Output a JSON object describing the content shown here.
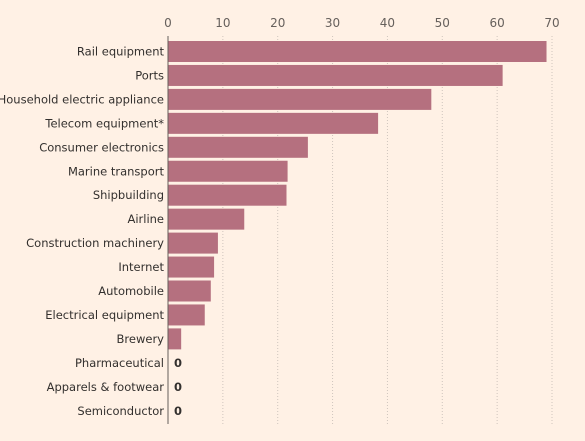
{
  "chart_data": {
    "type": "bar",
    "orientation": "horizontal",
    "categories": [
      "Rail equipment",
      "Ports",
      "Household electric appliance",
      "Telecom equipment*",
      "Consumer electronics",
      "Marine transport",
      "Shipbuilding",
      "Airline",
      "Construction machinery",
      "Internet",
      "Automobile",
      "Electrical equipment",
      "Brewery",
      "Pharmaceutical",
      "Apparels & footwear",
      "Semiconductor"
    ],
    "values": [
      69,
      61,
      48,
      38.3,
      25.5,
      21.8,
      21.6,
      13.9,
      9.1,
      8.4,
      7.8,
      6.7,
      2.4,
      0,
      0,
      0
    ],
    "zero_value_label": "0",
    "xlim": [
      0,
      70
    ],
    "xticks": [
      "0",
      "10",
      "20",
      "30",
      "40",
      "50",
      "60",
      "70"
    ],
    "xaxis_position": "top",
    "grid": true,
    "bar_color": "#b5707f"
  }
}
